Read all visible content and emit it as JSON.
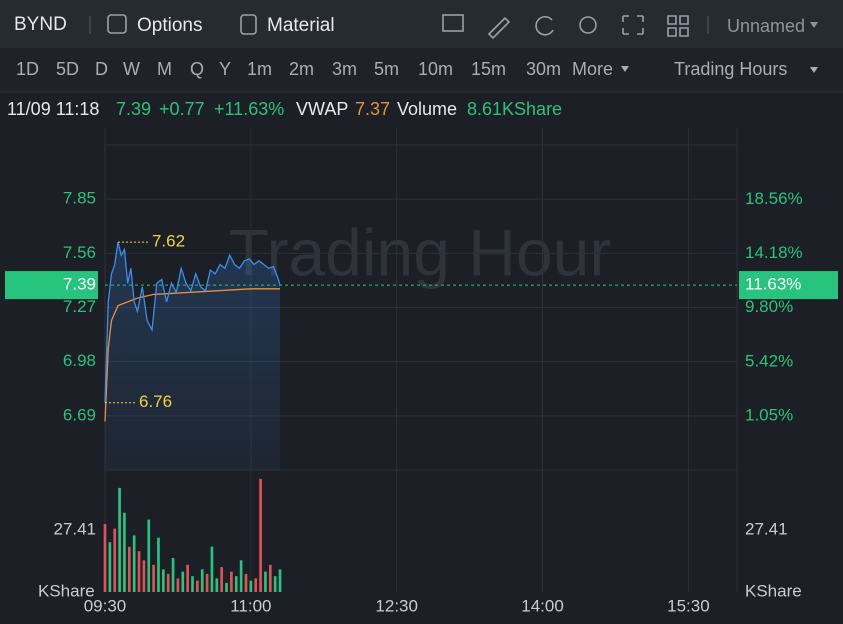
{
  "toolbar": {
    "symbol": "BYND",
    "options": "Options",
    "material": "Material",
    "layout_name": "Unnamed"
  },
  "timeframes": {
    "items": [
      "1D",
      "5D",
      "D",
      "W",
      "M",
      "Q",
      "Y",
      "1m",
      "2m",
      "3m",
      "5m",
      "10m",
      "15m",
      "30m",
      "More"
    ],
    "session": "Trading Hours"
  },
  "info": {
    "datetime": "11/09 11:18",
    "price": "7.39",
    "change": "+0.77",
    "change_pct": "+11.63%",
    "vwap_label": "VWAP",
    "vwap": "7.37",
    "volume_label": "Volume",
    "volume": "8.61KShare"
  },
  "chart": {
    "type": "line",
    "watermark": "Trading Hour",
    "xlim": [
      570,
      960
    ],
    "xticks": [
      {
        "value": 570,
        "label": "09:30"
      },
      {
        "value": 660,
        "label": "11:00"
      },
      {
        "value": 750,
        "label": "12:30"
      },
      {
        "value": 840,
        "label": "14:00"
      },
      {
        "value": 930,
        "label": "15:30"
      }
    ],
    "ylim": [
      6.4,
      8.14
    ],
    "yticks": [
      6.69,
      6.98,
      7.27,
      7.56,
      7.85
    ],
    "y2lim": [
      -3.32,
      22.96
    ],
    "y2ticks": [
      {
        "value": 1.05,
        "label": "1.05%"
      },
      {
        "value": 5.42,
        "label": "5.42%"
      },
      {
        "value": 9.8,
        "label": "9.80%"
      },
      {
        "value": 14.18,
        "label": "14.18%"
      },
      {
        "value": 18.56,
        "label": "18.56%"
      }
    ],
    "price": {
      "color": "#3b8ef0",
      "x": [
        570,
        572,
        574,
        576,
        578,
        580,
        582,
        584,
        586,
        588,
        590,
        593,
        596,
        599,
        602,
        605,
        608,
        611,
        614,
        617,
        620,
        623,
        626,
        629,
        632,
        635,
        638,
        641,
        644,
        647,
        650,
        653,
        656,
        659,
        662,
        665,
        668,
        671,
        674,
        677,
        678
      ],
      "values": [
        6.76,
        7.3,
        7.45,
        7.5,
        7.62,
        7.55,
        7.58,
        7.4,
        7.48,
        7.3,
        7.25,
        7.38,
        7.2,
        7.15,
        7.4,
        7.42,
        7.3,
        7.4,
        7.35,
        7.48,
        7.4,
        7.36,
        7.45,
        7.38,
        7.36,
        7.47,
        7.45,
        7.5,
        7.48,
        7.55,
        7.5,
        7.48,
        7.52,
        7.53,
        7.5,
        7.52,
        7.5,
        7.48,
        7.49,
        7.42,
        7.39
      ]
    },
    "vwap": {
      "color": "#e8913a",
      "x": [
        570,
        572,
        574,
        578,
        584,
        590,
        600,
        620,
        640,
        660,
        678
      ],
      "values": [
        6.66,
        7.05,
        7.2,
        7.28,
        7.3,
        7.32,
        7.34,
        7.35,
        7.36,
        7.37,
        7.37
      ]
    },
    "high": 7.62,
    "low": 6.76,
    "last": {
      "value": 7.39,
      "pct": {
        "value": 11.63,
        "label": "11.63%"
      },
      "color": "#27c47d"
    },
    "volume": {
      "unit": "KShare",
      "ylim": [
        0,
        53.9
      ],
      "yticks": [
        27.41
      ],
      "x": [
        570,
        573,
        576,
        579,
        582,
        585,
        588,
        591,
        594,
        597,
        600,
        603,
        606,
        609,
        612,
        615,
        618,
        621,
        624,
        627,
        630,
        633,
        636,
        639,
        642,
        645,
        648,
        651,
        654,
        657,
        660,
        663,
        666,
        669,
        672,
        675,
        678
      ],
      "values": [
        30,
        22,
        28,
        46,
        35,
        20,
        25,
        18,
        14,
        32,
        12,
        24,
        10,
        8,
        15,
        6,
        9,
        12,
        7,
        5,
        10,
        8,
        20,
        6,
        11,
        4,
        9,
        7,
        14,
        8,
        5,
        6,
        50,
        9,
        12,
        7,
        10
      ],
      "colors": [
        "#e0525a",
        "#27c47d",
        "#e0525a",
        "#27c47d",
        "#27c47d",
        "#e0525a",
        "#27c47d",
        "#e0525a",
        "#e0525a",
        "#27c47d",
        "#e0525a",
        "#27c47d",
        "#27c47d",
        "#e0525a",
        "#27c47d",
        "#e0525a",
        "#27c47d",
        "#e0525a",
        "#27c47d",
        "#e0525a",
        "#27c47d",
        "#e0525a",
        "#27c47d",
        "#27c47d",
        "#e0525a",
        "#27c47d",
        "#e0525a",
        "#27c47d",
        "#27c47d",
        "#e0525a",
        "#27c47d",
        "#e0525a",
        "#e0525a",
        "#27c47d",
        "#e0525a",
        "#27c47d",
        "#27c47d"
      ]
    }
  }
}
